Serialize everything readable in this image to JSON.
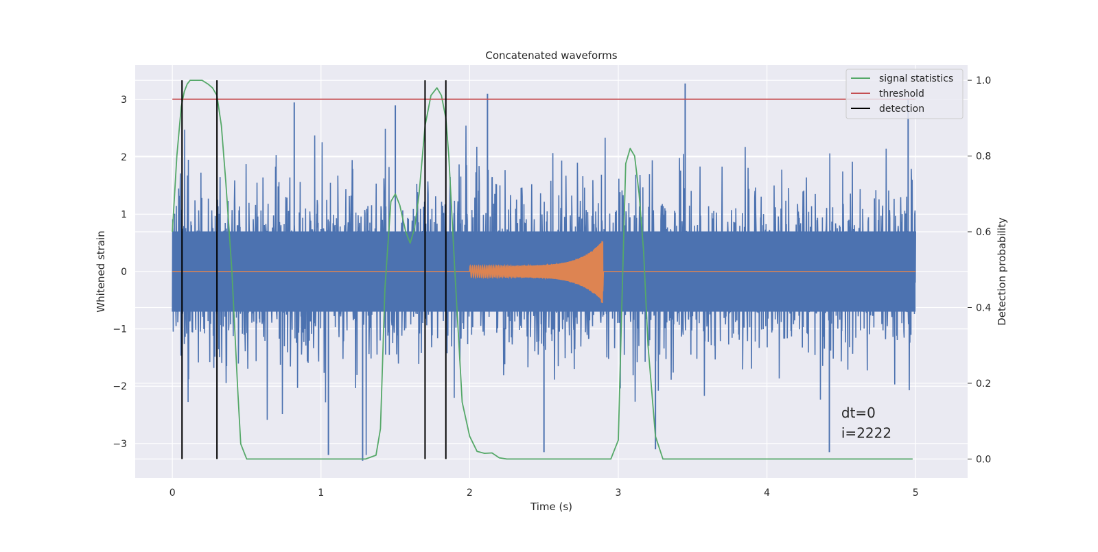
{
  "chart_data": {
    "type": "line",
    "title": "Concatenated waveforms",
    "xlabel": "Time (s)",
    "ylabel_left": "Whitened strain",
    "ylabel_right": "Detection probability",
    "xlim": [
      -0.25,
      5.35
    ],
    "ylim_left": [
      -3.6,
      3.6
    ],
    "ylim_right": [
      -0.05,
      1.04
    ],
    "x_ticks": [
      0,
      1,
      2,
      3,
      4,
      5
    ],
    "x_tick_labels": [
      "0",
      "1",
      "2",
      "3",
      "4",
      "5"
    ],
    "y_left_ticks": [
      -3,
      -2,
      -1,
      0,
      1,
      2,
      3
    ],
    "y_left_tick_labels": [
      "−3",
      "−2",
      "−1",
      "0",
      "1",
      "2",
      "3"
    ],
    "y_right_ticks": [
      0.0,
      0.2,
      0.4,
      0.6,
      0.8,
      1.0
    ],
    "y_right_tick_labels": [
      "0.0",
      "0.2",
      "0.4",
      "0.6",
      "0.8",
      "1.0"
    ],
    "grid": true,
    "legend_position": "top-right",
    "annotation_lines": [
      "dt=0",
      "i=2222"
    ],
    "colors": {
      "background": "#eaeaf2",
      "grid": "#ffffff",
      "strain": "#4c72b0",
      "template": "#dd8452",
      "signal_statistics": "#55a868",
      "threshold": "#c44e52",
      "detection": "#000000"
    },
    "series": [
      {
        "name": "",
        "kind": "noise",
        "axis": "left",
        "x_range": [
          0,
          5
        ],
        "core_amplitude": 0.7,
        "max_values": [
          1.7,
          3.28,
          2.8,
          2.7
        ],
        "min_values": [
          -3.3,
          -3.2,
          -3.1,
          -2.9
        ]
      },
      {
        "name": "",
        "kind": "chirp",
        "axis": "left",
        "x_range": [
          0,
          5
        ],
        "chirp_x": [
          2.0,
          2.9
        ],
        "chirp_start_amplitude": 0.1,
        "chirp_peak_amplitude": 0.55,
        "chirp_peak_min": -0.4
      },
      {
        "name": "signal statistics",
        "axis": "right",
        "x": [
          0.0,
          0.03,
          0.06,
          0.08,
          0.1,
          0.12,
          0.16,
          0.2,
          0.24,
          0.27,
          0.3,
          0.33,
          0.36,
          0.4,
          0.44,
          0.46,
          0.5,
          0.6,
          0.8,
          1.0,
          1.2,
          1.3,
          1.37,
          1.4,
          1.43,
          1.47,
          1.5,
          1.53,
          1.57,
          1.6,
          1.63,
          1.66,
          1.7,
          1.74,
          1.78,
          1.81,
          1.84,
          1.86,
          1.9,
          1.95,
          2.0,
          2.05,
          2.1,
          2.15,
          2.2,
          2.25,
          2.5,
          2.8,
          2.95,
          3.0,
          3.02,
          3.05,
          3.08,
          3.11,
          3.14,
          3.17,
          3.2,
          3.25,
          3.3,
          3.5,
          4.0,
          4.5,
          4.98
        ],
        "values": [
          0.6,
          0.8,
          0.93,
          0.97,
          0.99,
          1.0,
          1.0,
          1.0,
          0.99,
          0.98,
          0.96,
          0.88,
          0.73,
          0.5,
          0.18,
          0.04,
          0.0,
          0.0,
          0.0,
          0.0,
          0.0,
          0.0,
          0.01,
          0.08,
          0.45,
          0.68,
          0.7,
          0.67,
          0.6,
          0.57,
          0.61,
          0.7,
          0.88,
          0.96,
          0.98,
          0.96,
          0.9,
          0.8,
          0.5,
          0.15,
          0.06,
          0.02,
          0.015,
          0.016,
          0.003,
          0.0,
          0.0,
          0.0,
          0.0,
          0.05,
          0.35,
          0.78,
          0.82,
          0.8,
          0.7,
          0.55,
          0.3,
          0.06,
          0.0,
          0.0,
          0.0,
          0.0,
          0.0
        ]
      },
      {
        "name": "threshold",
        "axis": "right",
        "x": [
          0,
          5
        ],
        "values": [
          0.95,
          0.95
        ]
      },
      {
        "name": "detection",
        "axis": "right",
        "kind": "vlines",
        "x": [
          0.065,
          0.3,
          1.7,
          1.84
        ],
        "range": [
          0.0,
          1.0
        ]
      }
    ]
  }
}
